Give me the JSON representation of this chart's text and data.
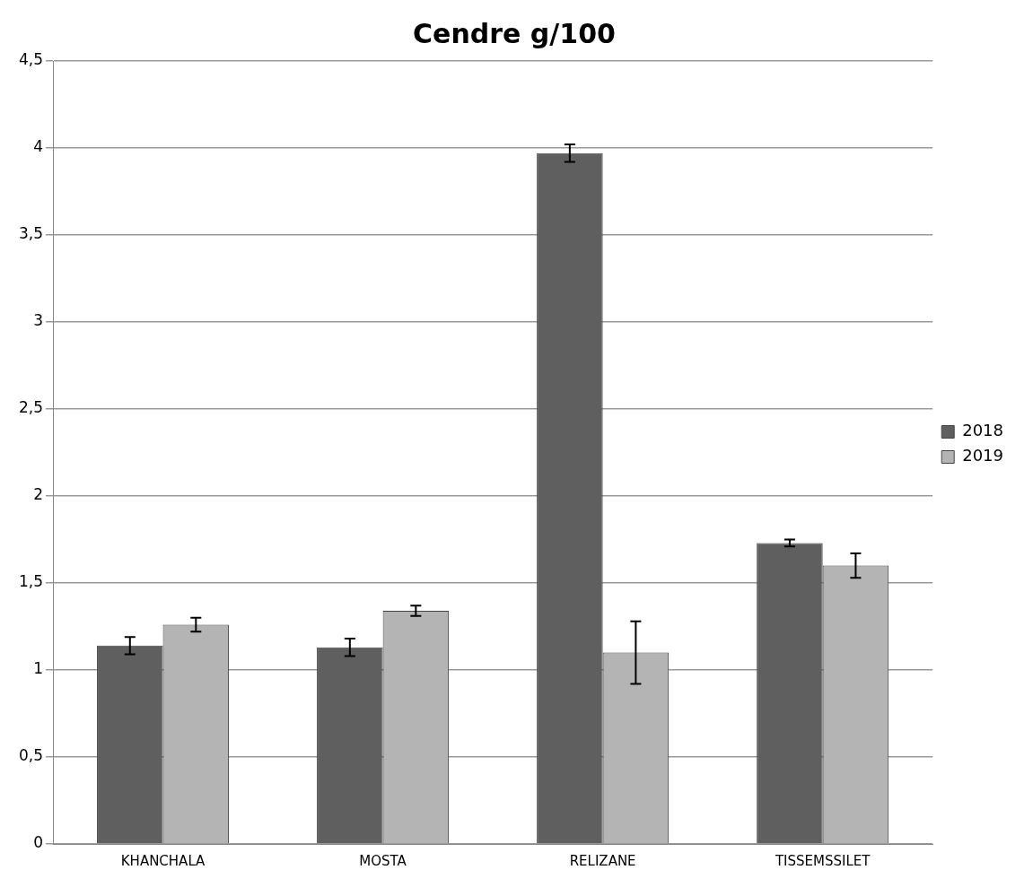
{
  "chart_data": {
    "type": "bar",
    "title": "Cendre g/100",
    "categories": [
      "KHANCHALA",
      "MOSTA",
      "RELIZANE",
      "TISSEMSSILET"
    ],
    "series": [
      {
        "name": "2018",
        "color": "#5f5f5f",
        "values": [
          1.14,
          1.13,
          3.97,
          1.73
        ],
        "errors": [
          0.05,
          0.05,
          0.05,
          0.02
        ]
      },
      {
        "name": "2019",
        "color": "#b4b4b4",
        "values": [
          1.26,
          1.34,
          1.1,
          1.6
        ],
        "errors": [
          0.04,
          0.03,
          0.18,
          0.07
        ]
      }
    ],
    "ylim": [
      0,
      4.5
    ],
    "yticks": [
      {
        "value": 0,
        "label": "0"
      },
      {
        "value": 0.5,
        "label": "0,5"
      },
      {
        "value": 1,
        "label": "1"
      },
      {
        "value": 1.5,
        "label": "1,5"
      },
      {
        "value": 2,
        "label": "2"
      },
      {
        "value": 2.5,
        "label": "2,5"
      },
      {
        "value": 3,
        "label": "3"
      },
      {
        "value": 3.5,
        "label": "3,5"
      },
      {
        "value": 4,
        "label": "4"
      },
      {
        "value": 4.5,
        "label": "4,5"
      }
    ],
    "grid": "y",
    "legend": "right"
  }
}
